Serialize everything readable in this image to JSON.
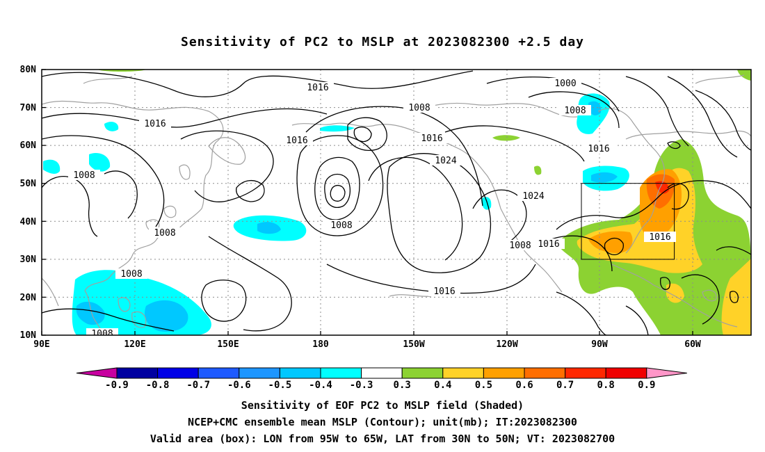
{
  "title": "Sensitivity of PC2 to MSLP at 2023082300 +2.5 day",
  "axes": {
    "lat_labels": [
      "80N",
      "70N",
      "60N",
      "50N",
      "40N",
      "30N",
      "20N",
      "10N"
    ],
    "lon_labels": [
      "90E",
      "120E",
      "150E",
      "180",
      "150W",
      "120W",
      "90W",
      "60W"
    ]
  },
  "contour_labels": [
    "1016",
    "1016",
    "1016",
    "1008",
    "1016",
    "1024",
    "1000",
    "1008",
    "1016",
    "1008",
    "1008",
    "1008",
    "1008",
    "1024",
    "1008",
    "1016",
    "1016",
    "1016",
    "1008"
  ],
  "colorbar": {
    "labels": [
      "-0.9",
      "-0.8",
      "-0.7",
      "-0.6",
      "-0.5",
      "-0.4",
      "-0.3",
      "0.3",
      "0.4",
      "0.5",
      "0.6",
      "0.7",
      "0.8",
      "0.9"
    ],
    "colors": [
      "#c800a0",
      "#0000a0",
      "#0000e6",
      "#1e5aff",
      "#1e96ff",
      "#00c8ff",
      "#00ffff",
      "#ffffff",
      "#8cd232",
      "#ffd228",
      "#ffa000",
      "#ff6e00",
      "#ff2800",
      "#f00000",
      "#ff96c8"
    ]
  },
  "captions": [
    "Sensitivity of EOF PC2 to MSLP field (Shaded)",
    "NCEP+CMC ensemble mean MSLP (Contour); unit(mb); IT:2023082300",
    "Valid area (box): LON from 95W to 65W, LAT from 30N to 50N; VT: 2023082700"
  ]
}
